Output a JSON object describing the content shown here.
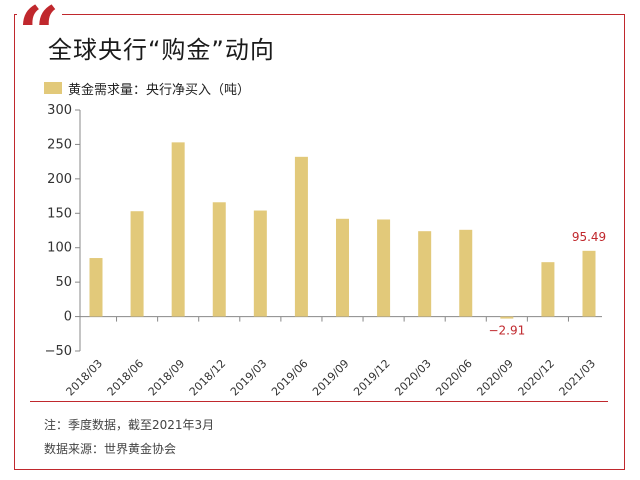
{
  "header": {
    "quote_icon": "left-double-quote-icon"
  },
  "chart_data": {
    "type": "bar",
    "title": "全球央行“购金”动向",
    "legend": [
      {
        "label": "黄金需求量：央行净买入（吨）",
        "color": "#e2c97a"
      }
    ],
    "categories": [
      "2018/03",
      "2018/06",
      "2018/09",
      "2018/12",
      "2019/03",
      "2019/06",
      "2019/09",
      "2019/12",
      "2020/03",
      "2020/06",
      "2020/09",
      "2020/12",
      "2021/03"
    ],
    "series": [
      {
        "name": "黄金需求量：央行净买入（吨）",
        "values": [
          85,
          153,
          253,
          166,
          154,
          232,
          142,
          141,
          124,
          126,
          -2.91,
          79,
          95.49
        ]
      }
    ],
    "data_labels": [
      {
        "category": "2020/09",
        "text": "−2.91",
        "color": "#c0282d"
      },
      {
        "category": "2021/03",
        "text": "95.49",
        "color": "#c0282d"
      }
    ],
    "yticks": [
      "300",
      "250",
      "200",
      "150",
      "100",
      "50",
      "0",
      "−50"
    ],
    "ylim": [
      -50,
      300
    ],
    "grid": false,
    "legend_position": "top-left",
    "bar_color": "#e2c97a",
    "axis_color": "#888888"
  },
  "footer": {
    "note": "注：季度数据，截至2021年3月",
    "source": "数据来源：世界黄金协会"
  }
}
